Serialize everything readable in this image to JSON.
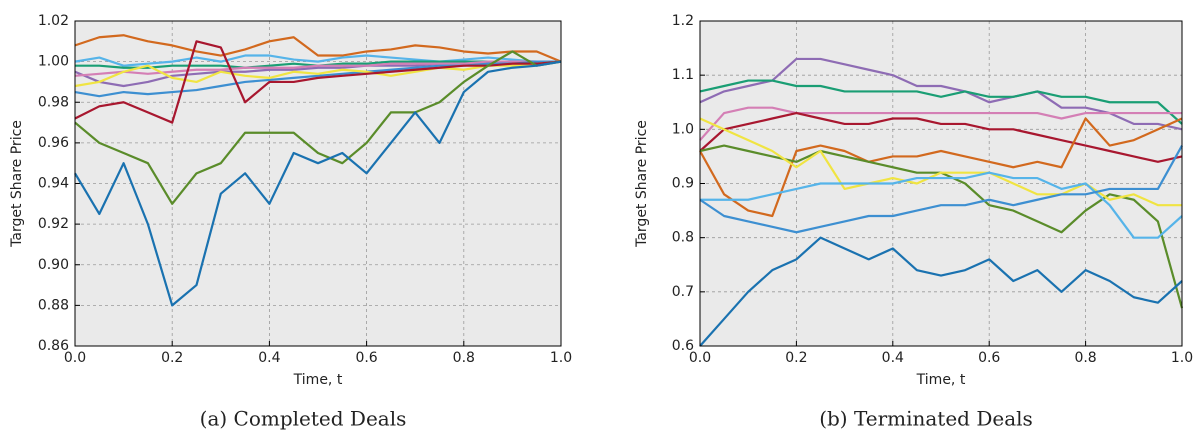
{
  "chart_data": [
    {
      "type": "line",
      "caption": "(a) Completed Deals",
      "xlabel": "Time, t",
      "ylabel": "Target Share Price",
      "xlim": [
        0,
        1
      ],
      "ylim": [
        0.86,
        1.02
      ],
      "xticks": [
        {
          "value": 0,
          "label": "0.0"
        },
        0.2,
        0.4,
        0.6,
        0.8,
        {
          "value": 1,
          "label": "1.0"
        }
      ],
      "yticks": [
        0.86,
        0.88,
        {
          "value": 0.9,
          "label": "0.90"
        },
        0.92,
        0.94,
        0.96,
        0.98,
        {
          "value": 1,
          "label": "1.00"
        },
        1.02
      ],
      "grid": true,
      "x": [
        0,
        0.05,
        0.1,
        0.15,
        0.2,
        0.25,
        0.3,
        0.35,
        0.4,
        0.45,
        0.5,
        0.55,
        0.6,
        0.65,
        0.7,
        0.75,
        0.8,
        0.85,
        0.9,
        0.95,
        1
      ],
      "series": [
        {
          "color": "#d2691e",
          "values": [
            1.008,
            1.012,
            1.013,
            1.01,
            1.008,
            1.005,
            1.003,
            1.006,
            1.01,
            1.012,
            1.003,
            1.003,
            1.005,
            1.006,
            1.008,
            1.007,
            1.005,
            1.004,
            1.005,
            1.005,
            1.0
          ]
        },
        {
          "color": "#56b4e9",
          "values": [
            1.0,
            1.002,
            0.998,
            0.999,
            1.0,
            1.002,
            1.0,
            1.003,
            1.003,
            1.001,
            1.0,
            1.002,
            1.003,
            1.002,
            1.001,
            1.0,
            1.001,
            1.002,
            1.001,
            1.0,
            1.0
          ]
        },
        {
          "color": "#8e6cb4",
          "values": [
            0.995,
            0.99,
            0.988,
            0.99,
            0.993,
            0.994,
            0.995,
            0.995,
            0.996,
            0.996,
            0.997,
            0.997,
            0.998,
            0.998,
            0.998,
            0.999,
            0.999,
            0.999,
            1.0,
            1.0,
            1.0
          ]
        },
        {
          "color": "#1a9e74",
          "values": [
            0.998,
            0.998,
            0.997,
            0.997,
            0.998,
            0.998,
            0.998,
            0.997,
            0.998,
            0.999,
            0.998,
            0.999,
            0.999,
            1.0,
            1.0,
            1.0,
            1.0,
            1.0,
            1.0,
            1.0,
            1.0
          ]
        },
        {
          "color": "#d47fb5",
          "values": [
            0.993,
            0.994,
            0.995,
            0.994,
            0.995,
            0.996,
            0.996,
            0.997,
            0.997,
            0.997,
            0.998,
            0.998,
            0.998,
            0.999,
            0.999,
            0.999,
            0.999,
            1.0,
            1.0,
            1.0,
            1.0
          ]
        },
        {
          "color": "#3d8fd1",
          "values": [
            0.985,
            0.983,
            0.985,
            0.984,
            0.985,
            0.986,
            0.988,
            0.99,
            0.991,
            0.992,
            0.993,
            0.994,
            0.995,
            0.996,
            0.997,
            0.998,
            0.998,
            0.999,
            0.999,
            1.0,
            1.0
          ]
        },
        {
          "color": "#f0e442",
          "values": [
            0.988,
            0.99,
            0.995,
            0.998,
            0.992,
            0.99,
            0.995,
            0.993,
            0.992,
            0.995,
            0.994,
            0.996,
            0.995,
            0.993,
            0.995,
            0.997,
            0.996,
            0.998,
            0.998,
            0.999,
            1.0
          ]
        },
        {
          "color": "#a8172f",
          "values": [
            0.972,
            0.978,
            0.98,
            0.975,
            0.97,
            1.01,
            1.007,
            0.98,
            0.99,
            0.99,
            0.992,
            0.993,
            0.994,
            0.995,
            0.996,
            0.997,
            0.998,
            0.998,
            0.999,
            0.999,
            1.0
          ]
        },
        {
          "color": "#5a8c2a",
          "values": [
            0.97,
            0.96,
            0.955,
            0.95,
            0.93,
            0.945,
            0.95,
            0.965,
            0.965,
            0.965,
            0.955,
            0.95,
            0.96,
            0.975,
            0.975,
            0.98,
            0.99,
            0.998,
            1.005,
            0.998,
            1.0
          ]
        },
        {
          "color": "#1a72b0",
          "values": [
            0.945,
            0.925,
            0.95,
            0.92,
            0.88,
            0.89,
            0.935,
            0.945,
            0.93,
            0.955,
            0.95,
            0.955,
            0.945,
            0.96,
            0.975,
            0.96,
            0.985,
            0.995,
            0.997,
            0.998,
            1.0
          ]
        }
      ]
    },
    {
      "type": "line",
      "caption": "(b) Terminated Deals",
      "xlabel": "Time, t",
      "ylabel": "Target Share Price",
      "xlim": [
        0,
        1
      ],
      "ylim": [
        0.6,
        1.2
      ],
      "xticks": [
        {
          "value": 0,
          "label": "0.0"
        },
        0.2,
        0.4,
        0.6,
        0.8,
        {
          "value": 1,
          "label": "1.0"
        }
      ],
      "yticks": [
        0.6,
        0.7,
        0.8,
        0.9,
        {
          "value": 1,
          "label": "1.0"
        },
        1.1,
        1.2
      ],
      "grid": true,
      "x": [
        0,
        0.05,
        0.1,
        0.15,
        0.2,
        0.25,
        0.3,
        0.35,
        0.4,
        0.45,
        0.5,
        0.55,
        0.6,
        0.65,
        0.7,
        0.75,
        0.8,
        0.85,
        0.9,
        0.95,
        1
      ],
      "series": [
        {
          "color": "#8e6cb4",
          "values": [
            1.05,
            1.07,
            1.08,
            1.09,
            1.13,
            1.13,
            1.12,
            1.11,
            1.1,
            1.08,
            1.08,
            1.07,
            1.05,
            1.06,
            1.07,
            1.04,
            1.04,
            1.03,
            1.01,
            1.01,
            1.0
          ]
        },
        {
          "color": "#1a9e74",
          "values": [
            1.07,
            1.08,
            1.09,
            1.09,
            1.08,
            1.08,
            1.07,
            1.07,
            1.07,
            1.07,
            1.06,
            1.07,
            1.06,
            1.06,
            1.07,
            1.06,
            1.06,
            1.05,
            1.05,
            1.05,
            1.01
          ]
        },
        {
          "color": "#d47fb5",
          "values": [
            0.98,
            1.03,
            1.04,
            1.04,
            1.03,
            1.03,
            1.03,
            1.03,
            1.03,
            1.03,
            1.03,
            1.03,
            1.03,
            1.03,
            1.03,
            1.02,
            1.03,
            1.03,
            1.03,
            1.03,
            1.03
          ]
        },
        {
          "color": "#a8172f",
          "values": [
            0.96,
            1.0,
            1.01,
            1.02,
            1.03,
            1.02,
            1.01,
            1.01,
            1.02,
            1.02,
            1.01,
            1.01,
            1.0,
            1.0,
            0.99,
            0.98,
            0.97,
            0.96,
            0.95,
            0.94,
            0.95
          ]
        },
        {
          "color": "#d2691e",
          "values": [
            0.96,
            0.88,
            0.85,
            0.84,
            0.96,
            0.97,
            0.96,
            0.94,
            0.95,
            0.95,
            0.96,
            0.95,
            0.94,
            0.93,
            0.94,
            0.93,
            1.02,
            0.97,
            0.98,
            1.0,
            1.02
          ]
        },
        {
          "color": "#5a8c2a",
          "values": [
            0.96,
            0.97,
            0.96,
            0.95,
            0.94,
            0.96,
            0.95,
            0.94,
            0.93,
            0.92,
            0.92,
            0.9,
            0.86,
            0.85,
            0.83,
            0.81,
            0.85,
            0.88,
            0.87,
            0.83,
            0.67
          ]
        },
        {
          "color": "#f0e442",
          "values": [
            1.02,
            1.0,
            0.98,
            0.96,
            0.93,
            0.96,
            0.89,
            0.9,
            0.91,
            0.9,
            0.92,
            0.92,
            0.92,
            0.9,
            0.88,
            0.88,
            0.9,
            0.87,
            0.88,
            0.86,
            0.86
          ]
        },
        {
          "color": "#56b4e9",
          "values": [
            0.87,
            0.87,
            0.87,
            0.88,
            0.89,
            0.9,
            0.9,
            0.9,
            0.9,
            0.91,
            0.91,
            0.91,
            0.92,
            0.91,
            0.91,
            0.89,
            0.9,
            0.86,
            0.8,
            0.8,
            0.84
          ]
        },
        {
          "color": "#3d8fd1",
          "values": [
            0.87,
            0.84,
            0.83,
            0.82,
            0.81,
            0.82,
            0.83,
            0.84,
            0.84,
            0.85,
            0.86,
            0.86,
            0.87,
            0.86,
            0.87,
            0.88,
            0.88,
            0.89,
            0.89,
            0.89,
            0.97
          ]
        },
        {
          "color": "#1a72b0",
          "values": [
            0.6,
            0.65,
            0.7,
            0.74,
            0.76,
            0.8,
            0.78,
            0.76,
            0.78,
            0.74,
            0.73,
            0.74,
            0.76,
            0.72,
            0.74,
            0.7,
            0.74,
            0.72,
            0.69,
            0.68,
            0.72
          ]
        }
      ]
    }
  ]
}
